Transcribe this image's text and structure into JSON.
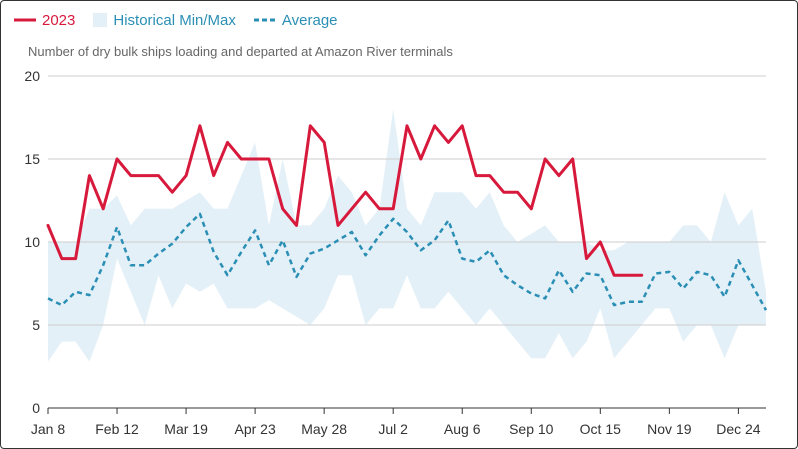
{
  "legend": {
    "items": [
      {
        "label": "2023",
        "color": "#d7193c"
      },
      {
        "label": "Historical Min/Max",
        "color": "#2b8fb5"
      },
      {
        "label": "Average",
        "color": "#2b8fb5"
      }
    ]
  },
  "chart_data": {
    "type": "line",
    "subtitle": "Number of dry bulk ships loading and departed at Amazon River terminals",
    "xlabel": "",
    "ylabel": "",
    "ylim": [
      0,
      20
    ],
    "yticks": [
      0,
      5,
      10,
      15,
      20
    ],
    "grid": true,
    "legend_position": "top-left",
    "x_weeks": 53,
    "x_tick_labels": [
      "Jan 8",
      "Feb 12",
      "Mar 19",
      "Apr 23",
      "May 28",
      "Jul 2",
      "Aug 6",
      "Sep 10",
      "Oct 15",
      "Nov 19",
      "Dec 24"
    ],
    "x_tick_week_index": [
      0,
      5,
      10,
      15,
      20,
      25,
      30,
      35,
      40,
      45,
      50
    ],
    "colors": {
      "current": "#d7193c",
      "average": "#2b8fb5",
      "band": "#e3f0f7"
    },
    "series": [
      {
        "name": "2023",
        "values": [
          11,
          9,
          9,
          14,
          12,
          15,
          14,
          14,
          14,
          13,
          14,
          17,
          14,
          16,
          15,
          15,
          15,
          12,
          11,
          17,
          16,
          11,
          12,
          13,
          12,
          12,
          17,
          15,
          17,
          16,
          17,
          14,
          14,
          13,
          13,
          12,
          15,
          14,
          15,
          9,
          10,
          8,
          8,
          8
        ]
      },
      {
        "name": "Average",
        "values": [
          6.6,
          6.2,
          7,
          6.8,
          8.6,
          10.9,
          8.6,
          8.6,
          9.3,
          9.9,
          10.9,
          11.7,
          9.4,
          8,
          9.4,
          10.7,
          8.6,
          10.1,
          7.9,
          9.3,
          9.6,
          10.1,
          10.6,
          9.2,
          10.4,
          11.4,
          10.6,
          9.5,
          10.1,
          11.3,
          9,
          8.8,
          9.5,
          8,
          7.4,
          6.9,
          6.6,
          8.3,
          7,
          8.1,
          8,
          6.2,
          6.4,
          6.4,
          8.1,
          8.2,
          7.2,
          8.2,
          8,
          6.7,
          8.9,
          7.4,
          5.9
        ]
      },
      {
        "name": "Historical Min/Max",
        "min": [
          2.8,
          4,
          4,
          2.8,
          5,
          9,
          7,
          5,
          8,
          6,
          7.5,
          7,
          7.5,
          6,
          6,
          6,
          6.5,
          6,
          5.5,
          5,
          6,
          8,
          8,
          5,
          6,
          6,
          8,
          6,
          6,
          7,
          6,
          5,
          6,
          5,
          4,
          3,
          3,
          4.5,
          3,
          4,
          6,
          3,
          4,
          5,
          6,
          6,
          4,
          5,
          5,
          3,
          5,
          5,
          5
        ],
        "max": [
          10,
          10,
          10,
          12,
          12,
          12.8,
          11,
          12,
          12,
          12,
          12.5,
          13,
          12,
          12,
          14,
          16,
          11,
          15,
          11,
          11,
          12,
          14,
          13,
          11,
          12,
          18,
          12,
          11,
          13,
          13,
          13,
          12,
          13,
          11,
          10,
          10.5,
          11,
          10,
          10,
          10,
          9.5,
          9.5,
          10,
          10,
          10,
          10,
          11,
          11,
          10,
          13,
          11,
          12,
          7
        ]
      }
    ]
  }
}
